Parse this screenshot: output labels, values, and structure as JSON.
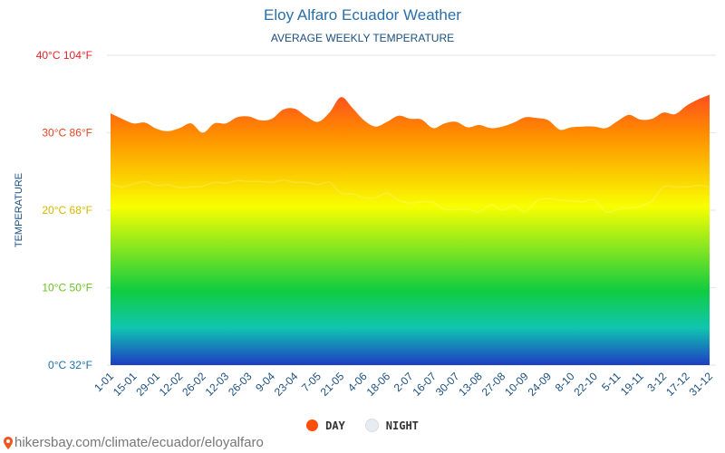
{
  "header": {
    "title": "Eloy Alfaro Ecuador Weather",
    "subtitle": "AVERAGE WEEKLY TEMPERATURE"
  },
  "legend": {
    "day_label": "DAY",
    "night_label": "NIGHT",
    "day_color": "#ff4d0a",
    "night_color": "#e6ecf2"
  },
  "footer": {
    "url": "hikersbay.com/climate/ecuador/eloyalfaro"
  },
  "colors": {
    "grid": "#e6e6e6",
    "axis_label": "#1b4f80",
    "gradient_top": "#ff1040",
    "gradient_orange": "#ff8a00",
    "gradient_yellow": "#f8ff00",
    "gradient_green": "#10cc40",
    "gradient_teal": "#0fc6b0",
    "gradient_blue": "#1f3cc2"
  },
  "chart_data": {
    "type": "area",
    "title": "Eloy Alfaro Ecuador Weather",
    "subtitle": "AVERAGE WEEKLY TEMPERATURE",
    "ylabel": "TEMPERATURE",
    "ylim": [
      0,
      40
    ],
    "y_ticks": [
      {
        "value": 40,
        "label": "40°C 104°F",
        "color": "#e8202a"
      },
      {
        "value": 30,
        "label": "30°C 86°F",
        "color": "#e8451f"
      },
      {
        "value": 20,
        "label": "20°C 68°F",
        "color": "#d7b800"
      },
      {
        "value": 10,
        "label": "10°C 50°F",
        "color": "#6cc21d"
      },
      {
        "value": 0,
        "label": "0°C 32°F",
        "color": "#1b6fa8"
      }
    ],
    "x_tick_labels": [
      "1-01",
      "15-01",
      "29-01",
      "12-02",
      "26-02",
      "12-03",
      "26-03",
      "9-04",
      "23-04",
      "7-05",
      "21-05",
      "4-06",
      "18-06",
      "2-07",
      "16-07",
      "30-07",
      "13-08",
      "27-08",
      "10-09",
      "24-09",
      "8-10",
      "22-10",
      "5-11",
      "19-11",
      "3-12",
      "17-12",
      "31-12"
    ],
    "grid": true,
    "legend_position": "bottom",
    "series": [
      {
        "name": "DAY",
        "values": [
          32.5,
          31.8,
          31.2,
          31.3,
          30.5,
          30.2,
          30.6,
          31.2,
          30.0,
          31.2,
          31.2,
          32.0,
          32.1,
          31.6,
          31.8,
          33.0,
          33.1,
          32.1,
          31.4,
          32.6,
          34.6,
          33.2,
          31.6,
          30.8,
          31.4,
          32.2,
          31.8,
          31.7,
          30.6,
          31.2,
          31.4,
          30.7,
          31.0,
          30.6,
          30.8,
          31.3,
          32.0,
          31.9,
          31.6,
          30.4,
          30.7,
          30.8,
          30.8,
          30.6,
          31.5,
          32.3,
          31.7,
          31.8,
          32.6,
          32.4,
          33.5,
          34.3,
          34.9
        ]
      },
      {
        "name": "NIGHT",
        "values": [
          23.4,
          23.0,
          23.4,
          23.7,
          23.2,
          23.3,
          22.9,
          23.0,
          23.1,
          23.6,
          23.5,
          23.8,
          23.7,
          23.7,
          23.6,
          23.9,
          23.6,
          23.6,
          23.3,
          23.6,
          22.2,
          22.1,
          21.6,
          21.6,
          22.2,
          21.3,
          20.9,
          21.1,
          21.0,
          20.1,
          20.1,
          20.1,
          19.8,
          20.7,
          20.0,
          20.6,
          19.8,
          21.2,
          21.5,
          21.3,
          21.2,
          21.1,
          21.3,
          19.8,
          20.1,
          20.3,
          20.5,
          21.2,
          23.0,
          23.0,
          23.0,
          23.2,
          23.0
        ]
      }
    ]
  }
}
